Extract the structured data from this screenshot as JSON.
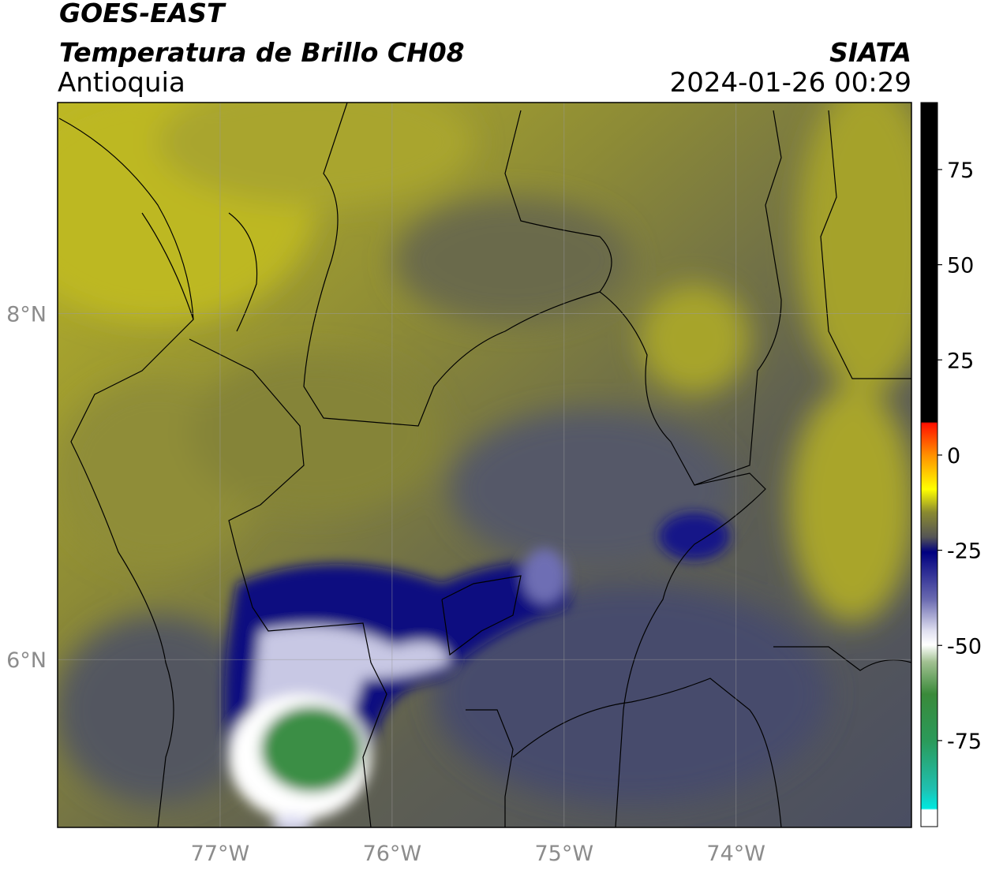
{
  "header": {
    "title": "GOES-EAST",
    "subtitle": "Temperatura de Brillo CH08",
    "region": "Antioquia",
    "source": "SIATA",
    "datetime": "2024-01-26 00:29"
  },
  "map": {
    "lon_range": [
      -77.945,
      -72.98
    ],
    "lat_range": [
      5.03,
      9.22
    ],
    "lat_ticks": [
      {
        "value": 8,
        "label": "8°N"
      },
      {
        "value": 6,
        "label": "6°N"
      }
    ],
    "lon_ticks": [
      {
        "value": -77,
        "label": "77°W"
      },
      {
        "value": -76,
        "label": "76°W"
      },
      {
        "value": -75,
        "label": "75°W"
      },
      {
        "value": -74,
        "label": "74°W"
      }
    ]
  },
  "colorbar": {
    "range": [
      -97.6,
      92.6
    ],
    "ticks": [
      75,
      50,
      25,
      0,
      -25,
      -50,
      -75
    ]
  }
}
